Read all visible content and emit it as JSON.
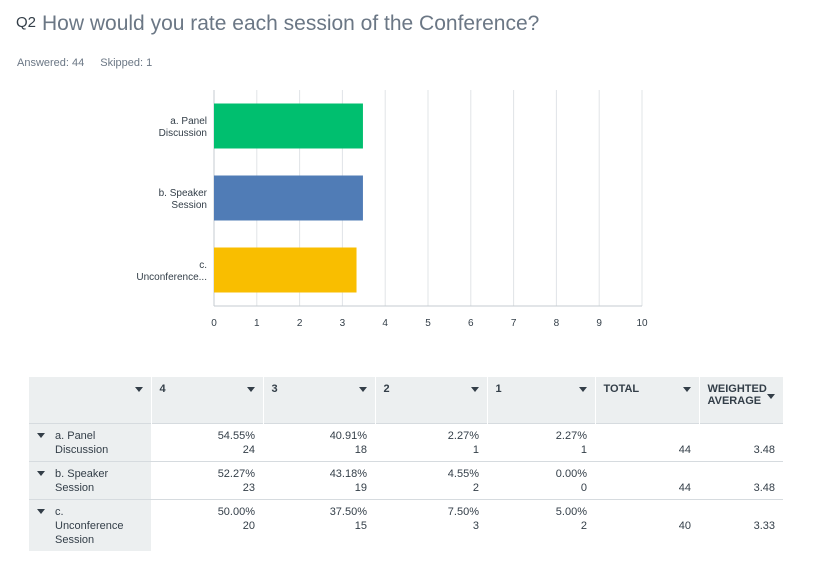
{
  "question": {
    "number": "Q2",
    "text": "How would you rate each session of the Conference?"
  },
  "stats": {
    "answered": "Answered: 44",
    "skipped": "Skipped: 1"
  },
  "colors": {
    "grid": "#e0e4e7",
    "axis": "#c5cbd0",
    "series": [
      "#00bf6f",
      "#507cb6",
      "#f9be00"
    ]
  },
  "chart_data": {
    "type": "bar",
    "orientation": "horizontal",
    "categories": [
      [
        "a. Panel",
        "Discussion"
      ],
      [
        "b. Speaker",
        "Session"
      ],
      [
        "c.",
        "Unconference..."
      ]
    ],
    "values": [
      3.48,
      3.48,
      3.33
    ],
    "xlim": [
      0,
      10
    ],
    "xticks": [
      0,
      1,
      2,
      3,
      4,
      5,
      6,
      7,
      8,
      9,
      10
    ],
    "grid": true
  },
  "table": {
    "headers": [
      "",
      "4",
      "3",
      "2",
      "1",
      "TOTAL",
      [
        "WEIGHTED",
        "AVERAGE"
      ]
    ],
    "rows": [
      {
        "label": [
          "a. Panel",
          "Discussion"
        ],
        "cells": [
          [
            "54.55%",
            "24"
          ],
          [
            "40.91%",
            "18"
          ],
          [
            "2.27%",
            "1"
          ],
          [
            "2.27%",
            "1"
          ]
        ],
        "total": "44",
        "weighted": "3.48"
      },
      {
        "label": [
          "b. Speaker",
          "Session"
        ],
        "cells": [
          [
            "52.27%",
            "23"
          ],
          [
            "43.18%",
            "19"
          ],
          [
            "4.55%",
            "2"
          ],
          [
            "0.00%",
            "0"
          ]
        ],
        "total": "44",
        "weighted": "3.48"
      },
      {
        "label": [
          "c.",
          "Unconference",
          "Session"
        ],
        "cells": [
          [
            "50.00%",
            "20"
          ],
          [
            "37.50%",
            "15"
          ],
          [
            "7.50%",
            "3"
          ],
          [
            "5.00%",
            "2"
          ]
        ],
        "total": "40",
        "weighted": "3.33"
      }
    ]
  }
}
